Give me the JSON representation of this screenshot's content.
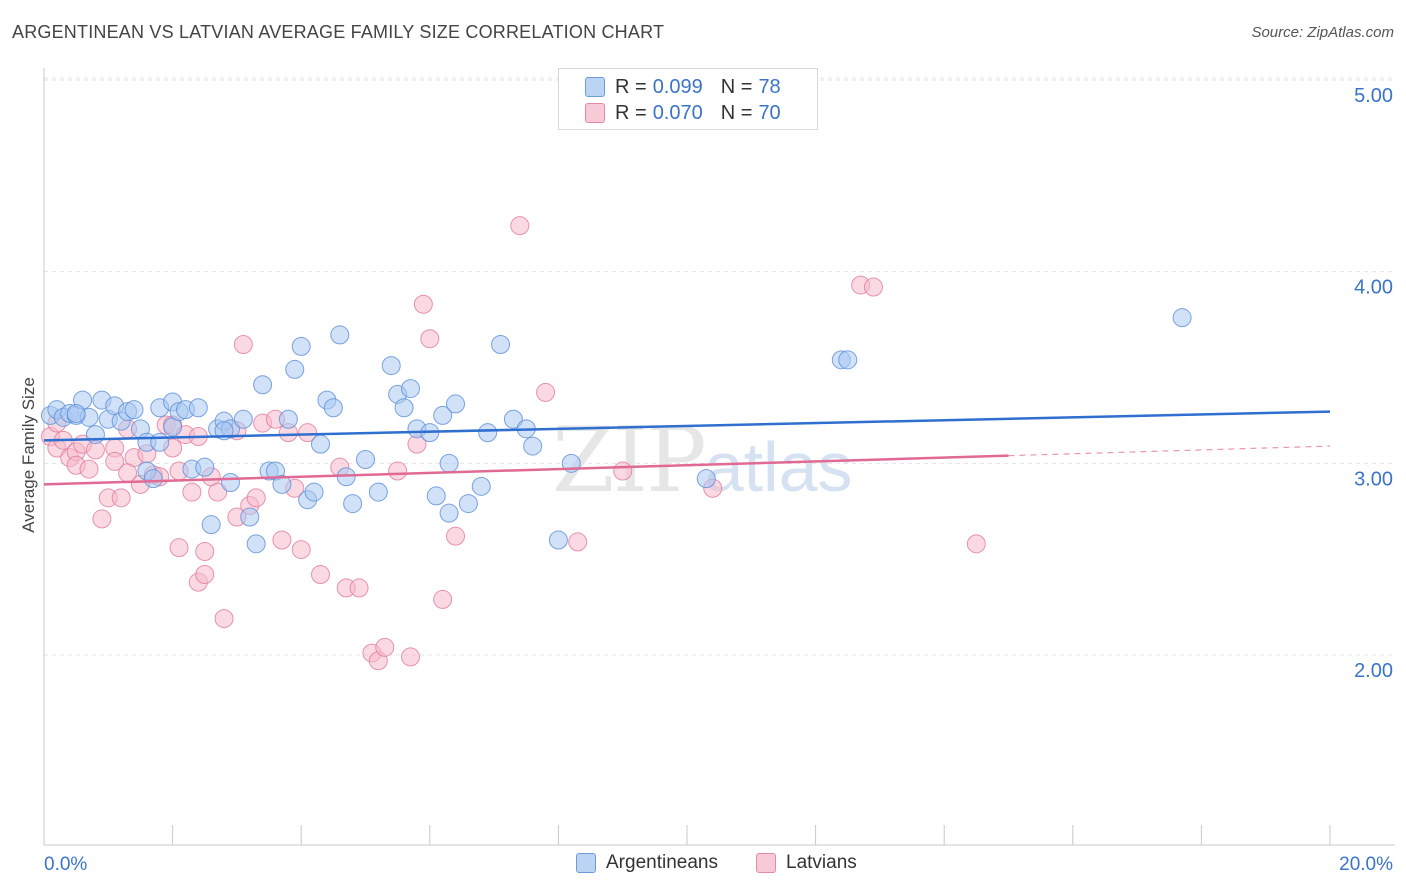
{
  "title": "ARGENTINEAN VS LATVIAN AVERAGE FAMILY SIZE CORRELATION CHART",
  "source": "Source: ZipAtlas.com",
  "watermark": {
    "zip": "ZIP",
    "atlas": "atlas"
  },
  "legend_top": [
    {
      "r_label": "R = ",
      "r_value": "0.099",
      "n_label": "N = ",
      "n_value": "78"
    },
    {
      "r_label": "R = ",
      "r_value": "0.070",
      "n_label": "N = ",
      "n_value": "70"
    }
  ],
  "legend_bottom": [
    "Argentineans",
    "Latvians"
  ],
  "colors": {
    "blue_fill": "#a9c8f2",
    "blue_stroke": "#5b8ed8",
    "blue_line": "#2f6fd0",
    "pink_fill": "#f6b9cb",
    "pink_stroke": "#e27a9c",
    "pink_line": "#e06a94",
    "tick_label": "#3a74c9",
    "grid": "#e3e3e3"
  },
  "chart_data": {
    "type": "scatter",
    "title": "ARGENTINEAN VS LATVIAN AVERAGE FAMILY SIZE CORRELATION CHART",
    "xlabel": "",
    "ylabel": "Average Family Size",
    "xlim": [
      0,
      20
    ],
    "ylim": [
      1.0,
      5.15
    ],
    "x_tick_labels": [
      {
        "value": 0,
        "label": "0.0%"
      },
      {
        "value": 20,
        "label": "20.0%"
      }
    ],
    "y_ticks": [
      {
        "value": 2.0,
        "label": "2.00"
      },
      {
        "value": 3.0,
        "label": "3.00"
      },
      {
        "value": 4.0,
        "label": "4.00"
      },
      {
        "value": 5.0,
        "label": "5.00"
      }
    ],
    "grid": "horizontal dashed",
    "legend": "top-center",
    "series": [
      {
        "name": "Argentineans",
        "r": 0.099,
        "n": 78,
        "trend": {
          "x0": 0,
          "y0": 3.12,
          "x1": 20,
          "y1": 3.27
        },
        "points": [
          [
            0.1,
            3.25
          ],
          [
            0.2,
            3.28
          ],
          [
            0.3,
            3.24
          ],
          [
            0.4,
            3.26
          ],
          [
            0.5,
            3.25
          ],
          [
            0.6,
            3.33
          ],
          [
            0.7,
            3.24
          ],
          [
            0.8,
            3.15
          ],
          [
            0.9,
            3.33
          ],
          [
            1.0,
            3.23
          ],
          [
            1.1,
            3.3
          ],
          [
            1.2,
            3.22
          ],
          [
            1.3,
            3.27
          ],
          [
            1.4,
            3.28
          ],
          [
            1.5,
            3.18
          ],
          [
            1.6,
            3.11
          ],
          [
            1.6,
            2.96
          ],
          [
            1.7,
            2.92
          ],
          [
            1.8,
            3.11
          ],
          [
            1.8,
            3.29
          ],
          [
            2.0,
            3.32
          ],
          [
            2.0,
            3.19
          ],
          [
            2.1,
            3.27
          ],
          [
            2.2,
            3.28
          ],
          [
            2.3,
            2.97
          ],
          [
            2.4,
            3.29
          ],
          [
            2.5,
            2.98
          ],
          [
            2.6,
            2.68
          ],
          [
            2.7,
            3.18
          ],
          [
            2.8,
            3.22
          ],
          [
            2.9,
            3.18
          ],
          [
            2.9,
            2.9
          ],
          [
            3.1,
            3.23
          ],
          [
            3.2,
            2.72
          ],
          [
            3.3,
            2.58
          ],
          [
            3.4,
            3.41
          ],
          [
            3.5,
            2.96
          ],
          [
            3.6,
            2.96
          ],
          [
            3.7,
            2.89
          ],
          [
            3.8,
            3.23
          ],
          [
            3.9,
            3.49
          ],
          [
            4.0,
            3.61
          ],
          [
            4.1,
            2.81
          ],
          [
            4.2,
            2.85
          ],
          [
            4.3,
            3.1
          ],
          [
            4.4,
            3.33
          ],
          [
            4.5,
            3.29
          ],
          [
            4.6,
            3.67
          ],
          [
            4.7,
            2.93
          ],
          [
            4.8,
            2.79
          ],
          [
            5.0,
            3.02
          ],
          [
            5.2,
            2.85
          ],
          [
            5.4,
            3.51
          ],
          [
            5.5,
            3.36
          ],
          [
            5.6,
            3.29
          ],
          [
            5.7,
            3.39
          ],
          [
            5.8,
            3.18
          ],
          [
            6.0,
            3.16
          ],
          [
            6.1,
            2.83
          ],
          [
            6.2,
            3.25
          ],
          [
            6.3,
            2.74
          ],
          [
            6.3,
            3.0
          ],
          [
            6.4,
            3.31
          ],
          [
            6.6,
            2.79
          ],
          [
            6.8,
            2.88
          ],
          [
            6.9,
            3.16
          ],
          [
            7.1,
            3.62
          ],
          [
            7.3,
            3.23
          ],
          [
            7.5,
            3.18
          ],
          [
            7.6,
            3.09
          ],
          [
            8.0,
            2.6
          ],
          [
            8.2,
            3.0
          ],
          [
            10.3,
            2.92
          ],
          [
            12.4,
            3.54
          ],
          [
            12.5,
            3.54
          ],
          [
            17.7,
            3.76
          ],
          [
            2.8,
            3.17
          ],
          [
            0.5,
            3.26
          ]
        ]
      },
      {
        "name": "Latvians",
        "r": 0.07,
        "n": 70,
        "trend": {
          "x0": 0,
          "y0": 2.89,
          "x1": 15.0,
          "y1": 3.04,
          "dashed_to_x": 20,
          "dashed_to_y": 3.09
        },
        "points": [
          [
            0.1,
            3.14
          ],
          [
            0.2,
            3.08
          ],
          [
            0.3,
            3.12
          ],
          [
            0.4,
            3.03
          ],
          [
            0.5,
            3.06
          ],
          [
            0.5,
            2.99
          ],
          [
            0.6,
            3.1
          ],
          [
            0.7,
            2.97
          ],
          [
            0.8,
            3.07
          ],
          [
            0.9,
            2.71
          ],
          [
            1.0,
            2.82
          ],
          [
            1.1,
            3.08
          ],
          [
            1.1,
            3.01
          ],
          [
            1.2,
            2.82
          ],
          [
            1.3,
            3.18
          ],
          [
            1.4,
            3.03
          ],
          [
            1.5,
            2.89
          ],
          [
            1.6,
            3.05
          ],
          [
            1.7,
            2.94
          ],
          [
            1.8,
            2.93
          ],
          [
            1.9,
            3.2
          ],
          [
            2.0,
            3.2
          ],
          [
            2.0,
            3.08
          ],
          [
            2.1,
            2.96
          ],
          [
            2.1,
            2.56
          ],
          [
            2.2,
            3.15
          ],
          [
            2.3,
            2.85
          ],
          [
            2.4,
            2.38
          ],
          [
            2.5,
            2.42
          ],
          [
            2.5,
            2.54
          ],
          [
            2.6,
            2.93
          ],
          [
            2.7,
            2.85
          ],
          [
            2.8,
            2.19
          ],
          [
            3.0,
            2.72
          ],
          [
            3.0,
            3.17
          ],
          [
            3.1,
            3.62
          ],
          [
            3.2,
            2.78
          ],
          [
            3.3,
            2.82
          ],
          [
            3.4,
            3.21
          ],
          [
            3.6,
            3.23
          ],
          [
            3.7,
            2.6
          ],
          [
            3.8,
            3.16
          ],
          [
            3.9,
            2.87
          ],
          [
            4.0,
            2.55
          ],
          [
            4.1,
            3.16
          ],
          [
            4.3,
            2.42
          ],
          [
            4.6,
            2.98
          ],
          [
            4.7,
            2.35
          ],
          [
            4.9,
            2.35
          ],
          [
            5.1,
            2.01
          ],
          [
            5.2,
            1.97
          ],
          [
            5.3,
            2.04
          ],
          [
            5.5,
            2.96
          ],
          [
            5.7,
            1.99
          ],
          [
            5.8,
            3.1
          ],
          [
            5.9,
            3.83
          ],
          [
            6.0,
            3.65
          ],
          [
            6.2,
            2.29
          ],
          [
            6.4,
            2.62
          ],
          [
            7.4,
            4.24
          ],
          [
            7.8,
            3.37
          ],
          [
            8.3,
            2.59
          ],
          [
            9.0,
            2.96
          ],
          [
            10.4,
            2.87
          ],
          [
            12.7,
            3.93
          ],
          [
            12.9,
            3.92
          ],
          [
            14.5,
            2.58
          ],
          [
            0.2,
            3.21
          ],
          [
            1.3,
            2.95
          ],
          [
            2.4,
            3.14
          ]
        ]
      }
    ]
  }
}
